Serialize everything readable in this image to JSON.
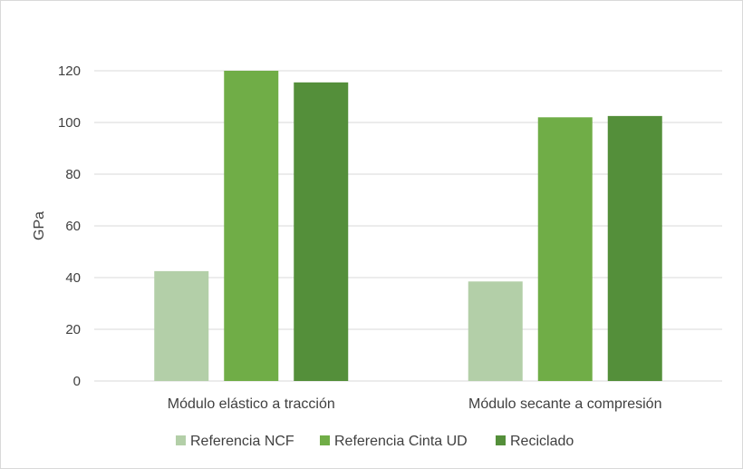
{
  "chart_data": {
    "type": "bar",
    "title": "",
    "ylabel": "GPa",
    "xlabel": "",
    "ylim": [
      0,
      120
    ],
    "yticks": [
      0,
      20,
      40,
      60,
      80,
      100,
      120
    ],
    "grid": true,
    "legend_position": "bottom",
    "categories": [
      "Módulo elástico a tracción",
      "Módulo secante a compresión"
    ],
    "series": [
      {
        "name": "Referencia NCF",
        "color": "#b3cfa8",
        "values": [
          42.5,
          38.5
        ]
      },
      {
        "name": "Referencia Cinta UD",
        "color": "#70ad47",
        "values": [
          120,
          102
        ]
      },
      {
        "name": "Reciclado",
        "color": "#548f3a",
        "values": [
          115.5,
          102.5
        ]
      }
    ]
  }
}
